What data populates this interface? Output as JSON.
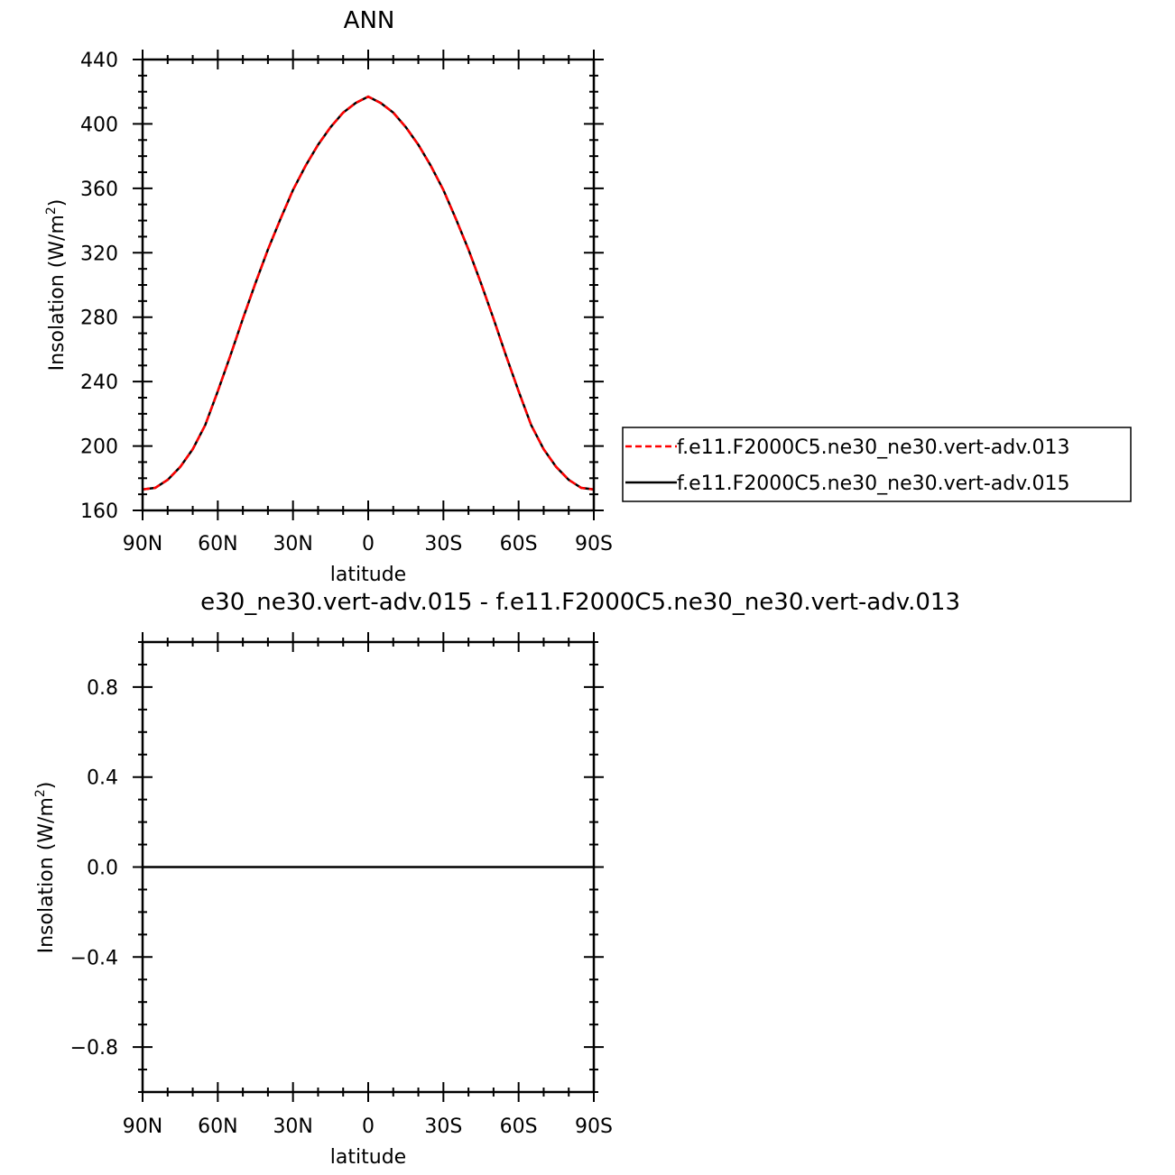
{
  "chart_data": [
    {
      "type": "line",
      "title": "ANN",
      "xlabel": "latitude",
      "ylabel": "Insolation  (W/m",
      "ylabel_sup": "2",
      "ylabel_close": ")",
      "xlim": [
        -90,
        90
      ],
      "ylim": [
        160,
        440
      ],
      "xticks": [
        -90,
        -60,
        -30,
        0,
        30,
        60,
        90
      ],
      "xtick_labels": [
        "90N",
        "60N",
        "30N",
        "0",
        "30S",
        "60S",
        "90S"
      ],
      "yticks": [
        160,
        200,
        240,
        280,
        320,
        360,
        400,
        440
      ],
      "ytick_labels": [
        "160",
        "200",
        "240",
        "280",
        "320",
        "360",
        "400",
        "440"
      ],
      "grid": false,
      "legend_position": "right",
      "x": [
        -90,
        -85,
        -80,
        -75,
        -70,
        -65,
        -60,
        -55,
        -50,
        -45,
        -40,
        -35,
        -30,
        -25,
        -20,
        -15,
        -10,
        -5,
        0,
        5,
        10,
        15,
        20,
        25,
        30,
        35,
        40,
        45,
        50,
        55,
        60,
        65,
        70,
        75,
        80,
        85,
        90
      ],
      "series": [
        {
          "name": "f.e11.F2000C5.ne30_ne30.vert-adv.013",
          "color": "#ff0000",
          "style": "dashed",
          "values": [
            173,
            174,
            179,
            187,
            198,
            213,
            234,
            256,
            279,
            301,
            322,
            341,
            359,
            374,
            387,
            398,
            407,
            413,
            417,
            413,
            407,
            398,
            387,
            374,
            359,
            341,
            322,
            301,
            279,
            256,
            234,
            213,
            198,
            187,
            179,
            174,
            173
          ]
        },
        {
          "name": "f.e11.F2000C5.ne30_ne30.vert-adv.015",
          "color": "#000000",
          "style": "solid",
          "values": [
            173,
            174,
            179,
            187,
            198,
            213,
            234,
            256,
            279,
            301,
            322,
            341,
            359,
            374,
            387,
            398,
            407,
            413,
            417,
            413,
            407,
            398,
            387,
            374,
            359,
            341,
            322,
            301,
            279,
            256,
            234,
            213,
            198,
            187,
            179,
            174,
            173
          ]
        }
      ]
    },
    {
      "type": "line",
      "title": "e30_ne30.vert-adv.015 - f.e11.F2000C5.ne30_ne30.vert-adv.013",
      "xlabel": "latitude",
      "ylabel": "Insolation  (W/m",
      "ylabel_sup": "2",
      "ylabel_close": ")",
      "xlim": [
        -90,
        90
      ],
      "ylim": [
        -1,
        1
      ],
      "xticks": [
        -90,
        -60,
        -30,
        0,
        30,
        60,
        90
      ],
      "xtick_labels": [
        "90N",
        "60N",
        "30N",
        "0",
        "30S",
        "60S",
        "90S"
      ],
      "yticks": [
        -0.8,
        -0.4,
        0.0,
        0.4,
        0.8
      ],
      "ytick_labels": [
        "−0.8",
        "−0.4",
        "0.0",
        "0.4",
        "0.8"
      ],
      "grid": false,
      "x": [
        -90,
        90
      ],
      "series": [
        {
          "color": "#000000",
          "style": "solid",
          "values": [
            0,
            0
          ]
        }
      ]
    }
  ]
}
